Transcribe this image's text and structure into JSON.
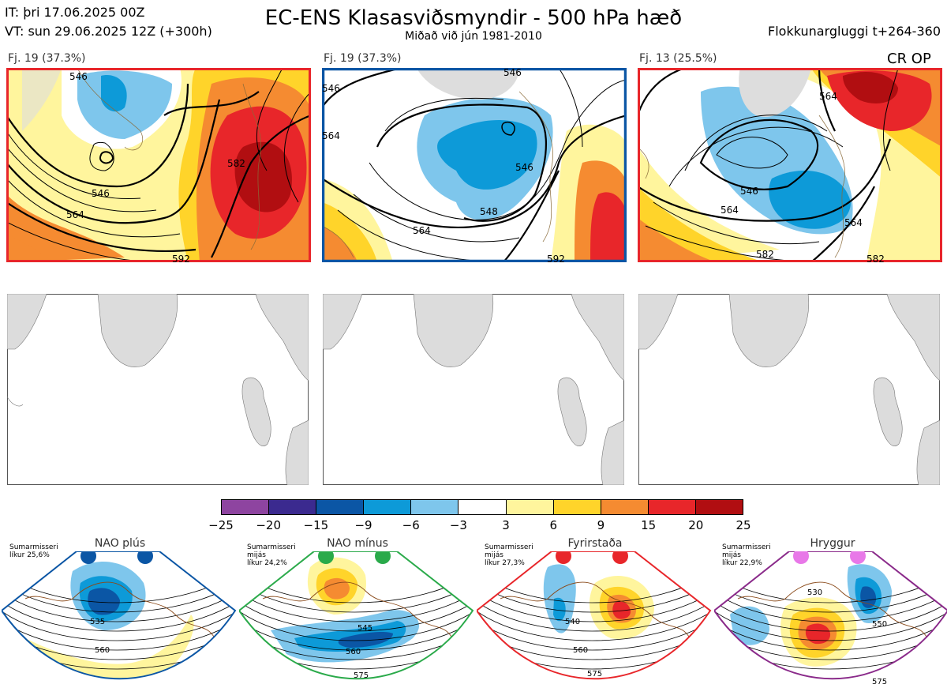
{
  "header": {
    "init_time": "IT: þri 17.06.2025 00Z",
    "valid_time": "VT: sun 29.06.2025 12Z  (+300h)",
    "title": "EC-ENS Klasasviðsmyndir - 500 hPa hæð",
    "subtitle": "Miðað við jún 1981-2010",
    "window": "Flokkunargluggi t+264-360"
  },
  "panels": [
    {
      "label": "Fj. 19 (37.3%)",
      "frame_color": "#e8262a",
      "contours": [
        "546",
        "564",
        "582",
        "546",
        "592"
      ]
    },
    {
      "label": "Fj. 19 (37.3%)",
      "frame_color": "#0b56a5",
      "contours": [
        "546",
        "564",
        "546",
        "548",
        "564",
        "546",
        "592"
      ]
    },
    {
      "label": "Fj. 13 (25.5%)",
      "frame_color": "#e8262a",
      "contours": [
        "564",
        "546",
        "564",
        "564",
        "582",
        "582"
      ],
      "tag": "CR OP"
    }
  ],
  "colorbar": {
    "colors": [
      "#8e44a0",
      "#3b2a8f",
      "#0b56a5",
      "#0d9ad8",
      "#7ec6ec",
      "#ffffff",
      "#fff59d",
      "#ffd42a",
      "#f58b31",
      "#e8262a",
      "#b10e11"
    ],
    "ticks": [
      "−25",
      "−20",
      "−15",
      "−9",
      "−6",
      "−3",
      "3",
      "6",
      "9",
      "15",
      "20",
      "25"
    ]
  },
  "regimes": [
    {
      "name": "NAO plús",
      "note": [
        "Sumarmisseri",
        "líkur 25,6%"
      ],
      "dot_color": "#0b56a5",
      "outline": "#0b56a5",
      "contours": [
        "535",
        "560"
      ]
    },
    {
      "name": "NAO mínus",
      "note": [
        "Sumarmisseri",
        "mijás",
        "líkur 24,2%"
      ],
      "dot_color": "#2aaa4a",
      "outline": "#2aaa4a",
      "contours": [
        "545",
        "560",
        "575"
      ]
    },
    {
      "name": "Fyrirstaða",
      "note": [
        "Sumarmisseri",
        "mijás",
        "líkur 27,3%"
      ],
      "dot_color": "#e8262a",
      "outline": "#e8262a",
      "contours": [
        "540",
        "560",
        "575"
      ]
    },
    {
      "name": "Hryggur",
      "note": [
        "Sumarmisseri",
        "mijás",
        "líkur 22,9%"
      ],
      "dot_color": "#e878e8",
      "outline": "#8a2a8a",
      "contours": [
        "530",
        "550",
        "575"
      ]
    }
  ]
}
